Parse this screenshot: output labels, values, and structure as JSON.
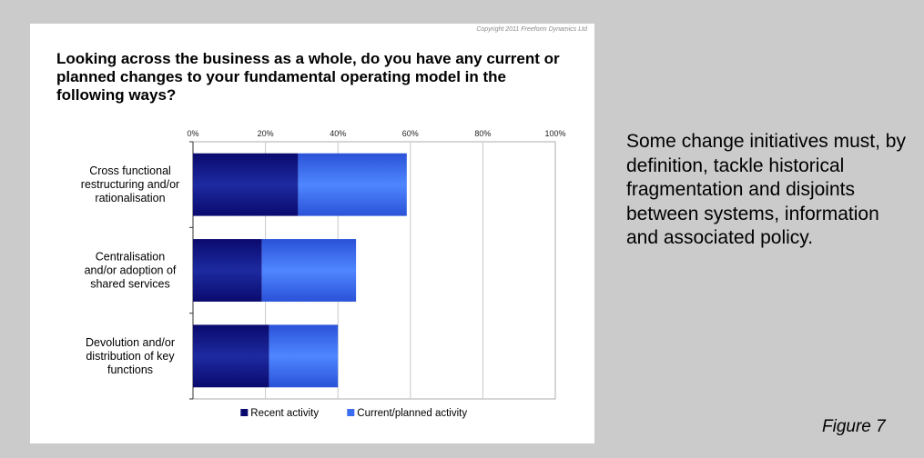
{
  "copyright": "Copyright 2011 Freeform Dynamics Ltd",
  "commentary": "Some change initiatives must, by definition, tackle historical fragmentation and disjoints between systems, information and associated policy.",
  "figure_label": "Figure 7",
  "colors": {
    "recent": "#0a0a6e",
    "planned": "#3a6cf0",
    "grid": "#c8c8c8",
    "background": "#cbcbcb"
  },
  "chart_data": {
    "type": "bar",
    "orientation": "horizontal",
    "stacked": true,
    "title": "Looking across the business as a whole, do you have any current or planned changes to your fundamental operating model in the following ways?",
    "categories": [
      [
        "Cross functional",
        "restructuring and/or",
        "rationalisation"
      ],
      [
        "Centralisation",
        "and/or adoption of",
        "shared services"
      ],
      [
        "Devolution and/or",
        "distribution of key",
        "functions"
      ]
    ],
    "series": [
      {
        "name": "Recent activity",
        "values": [
          29,
          19,
          21
        ]
      },
      {
        "name": "Current/planned activity",
        "values": [
          30,
          26,
          19
        ]
      }
    ],
    "xlim": [
      0,
      100
    ],
    "x_ticks": [
      "0%",
      "20%",
      "40%",
      "60%",
      "80%",
      "100%"
    ],
    "grid": true,
    "legend_position": "bottom"
  }
}
